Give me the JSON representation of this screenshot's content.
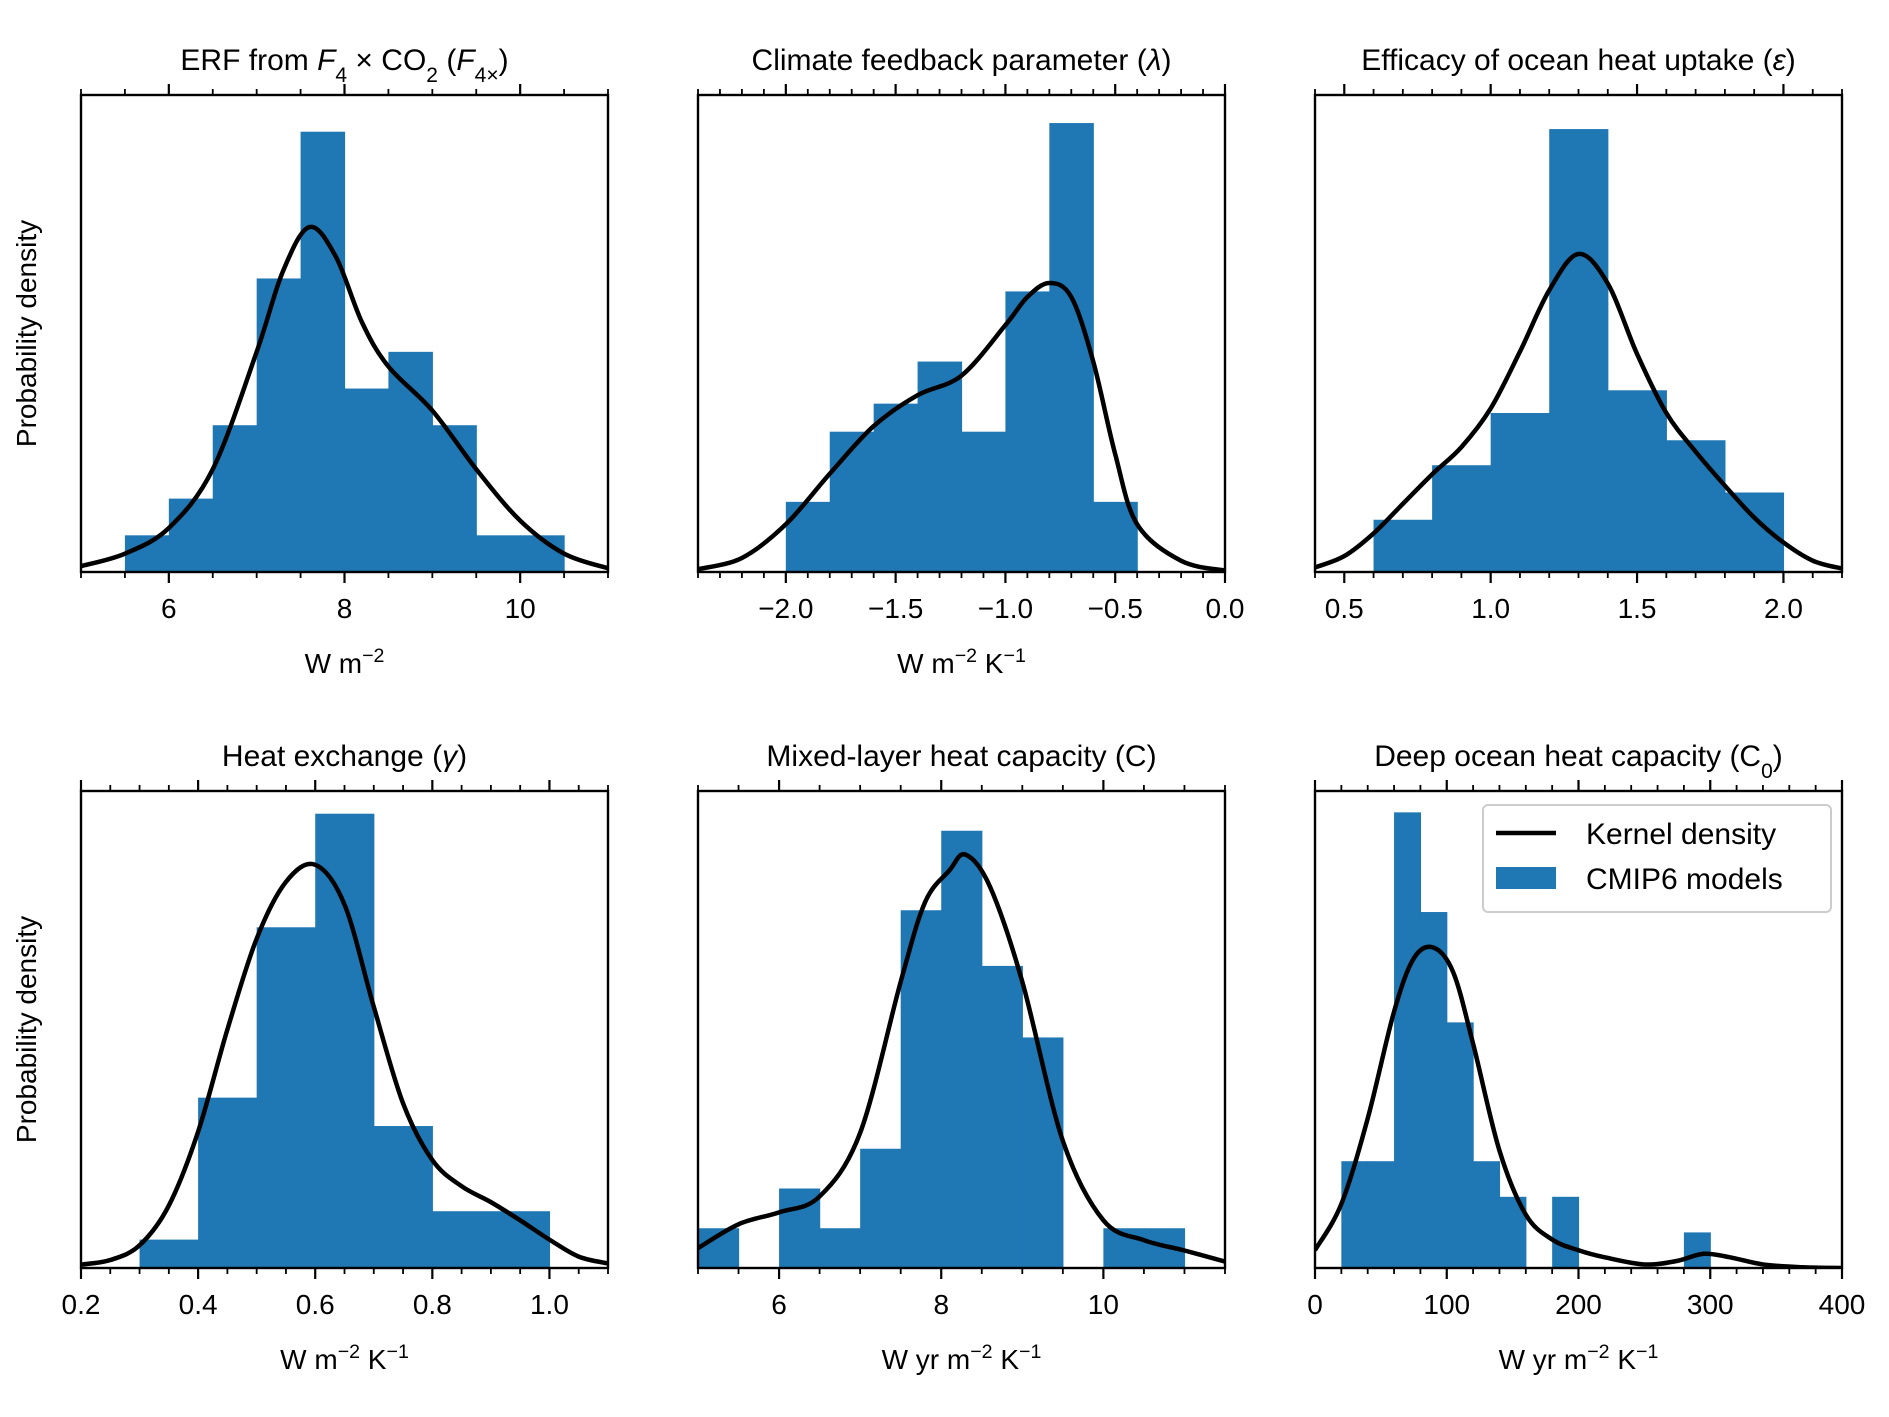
{
  "chart_data": [
    {
      "type": "bar",
      "panel": "a",
      "title": "ERF from F₄ × CO₂ (F₄ₓ)",
      "title_parts": [
        {
          "t": "ERF from "
        },
        {
          "t": "F",
          "i": true
        },
        {
          "t": "4",
          "sub": true
        },
        {
          "t": " × CO"
        },
        {
          "t": "2",
          "sub": true
        },
        {
          "t": " ("
        },
        {
          "t": "F",
          "i": true
        },
        {
          "t": "4×",
          "sub": true
        },
        {
          "t": ")"
        }
      ],
      "xlabel": "W m⁻²",
      "xlabel_parts": [
        {
          "t": "W m"
        },
        {
          "t": "−2",
          "sup": true
        }
      ],
      "ylabel": "Probability density",
      "xlim": [
        5,
        11
      ],
      "ylim": [
        0,
        0.65
      ],
      "xticks": [
        6,
        8,
        10
      ],
      "xtick_labels": [
        "6",
        "8",
        "10"
      ],
      "minor_step": 0.5,
      "bins": [
        5.5,
        6.0,
        6.5,
        7.0,
        7.5,
        8.0,
        8.5,
        9.0,
        9.5,
        10.0,
        10.5
      ],
      "heights": [
        0.05,
        0.1,
        0.2,
        0.4,
        0.6,
        0.25,
        0.3,
        0.2,
        0.05,
        0.05
      ],
      "kde_x": [
        5.0,
        5.5,
        6.0,
        6.5,
        7.0,
        7.3,
        7.6,
        7.9,
        8.2,
        8.5,
        9.0,
        9.5,
        10.0,
        10.5,
        11.0
      ],
      "kde_y": [
        0.008,
        0.025,
        0.06,
        0.14,
        0.3,
        0.41,
        0.47,
        0.43,
        0.34,
        0.28,
        0.22,
        0.14,
        0.07,
        0.025,
        0.005
      ]
    },
    {
      "type": "bar",
      "panel": "b",
      "title": "Climate feedback parameter (λ)",
      "title_parts": [
        {
          "t": "Climate feedback parameter ("
        },
        {
          "t": "λ",
          "i": true
        },
        {
          "t": ")"
        }
      ],
      "xlabel": "W m⁻² K⁻¹",
      "xlabel_parts": [
        {
          "t": "W m"
        },
        {
          "t": "−2",
          "sup": true
        },
        {
          "t": " K"
        },
        {
          "t": "−1",
          "sup": true
        }
      ],
      "xlim": [
        -2.4,
        0.0
      ],
      "ylim": [
        0,
        1.7
      ],
      "xticks": [
        -2.0,
        -1.5,
        -1.0,
        -0.5,
        0.0
      ],
      "xtick_labels": [
        "−2.0",
        "−1.5",
        "−1.0",
        "−0.5",
        "0.0"
      ],
      "minor_step": 0.1,
      "bins": [
        -2.0,
        -1.8,
        -1.6,
        -1.4,
        -1.2,
        -1.0,
        -0.8,
        -0.6,
        -0.4
      ],
      "heights": [
        0.25,
        0.5,
        0.6,
        0.75,
        0.5,
        1.0,
        1.6,
        0.25
      ],
      "kde_x": [
        -2.4,
        -2.2,
        -2.0,
        -1.8,
        -1.6,
        -1.4,
        -1.2,
        -1.0,
        -0.9,
        -0.8,
        -0.7,
        -0.6,
        -0.5,
        -0.4,
        -0.2,
        0.0
      ],
      "kde_y": [
        0.01,
        0.05,
        0.17,
        0.35,
        0.52,
        0.63,
        0.7,
        0.88,
        0.98,
        1.03,
        0.98,
        0.75,
        0.42,
        0.17,
        0.04,
        0.005
      ]
    },
    {
      "type": "bar",
      "panel": "c",
      "title": "Efficacy of ocean heat uptake (ε)",
      "title_parts": [
        {
          "t": "Efficacy of ocean heat uptake ("
        },
        {
          "t": "ε",
          "i": true
        },
        {
          "t": ")"
        }
      ],
      "xlabel": "",
      "xlim": [
        0.4,
        2.2
      ],
      "ylim": [
        0,
        2.1
      ],
      "xticks": [
        0.5,
        1.0,
        1.5,
        2.0
      ],
      "xtick_labels": [
        "0.5",
        "1.0",
        "1.5",
        "2.0"
      ],
      "minor_step": 0.1,
      "bins": [
        0.6,
        0.8,
        1.0,
        1.2,
        1.4,
        1.6,
        1.8,
        2.0
      ],
      "heights": [
        0.23,
        0.47,
        0.7,
        1.95,
        0.8,
        0.58,
        0.35
      ],
      "kde_x": [
        0.4,
        0.5,
        0.6,
        0.7,
        0.8,
        0.9,
        1.0,
        1.1,
        1.2,
        1.3,
        1.4,
        1.5,
        1.6,
        1.7,
        1.8,
        1.9,
        2.0,
        2.1,
        2.2
      ],
      "kde_y": [
        0.02,
        0.07,
        0.17,
        0.3,
        0.43,
        0.55,
        0.72,
        0.97,
        1.24,
        1.4,
        1.27,
        0.96,
        0.7,
        0.53,
        0.38,
        0.24,
        0.13,
        0.05,
        0.015
      ]
    },
    {
      "type": "bar",
      "panel": "d",
      "title": "Heat exchange (γ)",
      "title_parts": [
        {
          "t": "Heat exchange ("
        },
        {
          "t": "γ",
          "i": true
        },
        {
          "t": ")"
        }
      ],
      "xlabel": "W m⁻² K⁻¹",
      "xlabel_parts": [
        {
          "t": "W m"
        },
        {
          "t": "−2",
          "sup": true
        },
        {
          "t": " K"
        },
        {
          "t": "−1",
          "sup": true
        }
      ],
      "ylabel": "Probability density",
      "xlim": [
        0.2,
        1.1
      ],
      "ylim": [
        0,
        4.2
      ],
      "xticks": [
        0.2,
        0.4,
        0.6,
        0.8,
        1.0
      ],
      "xtick_labels": [
        "0.2",
        "0.4",
        "0.6",
        "0.8",
        "1.0"
      ],
      "minor_step": 0.05,
      "bins": [
        0.3,
        0.4,
        0.5,
        0.6,
        0.7,
        0.8,
        0.9,
        1.0
      ],
      "heights": [
        0.25,
        1.5,
        3.0,
        4.0,
        1.25,
        0.5,
        0.5
      ],
      "kde_x": [
        0.2,
        0.25,
        0.3,
        0.35,
        0.4,
        0.45,
        0.5,
        0.55,
        0.6,
        0.65,
        0.7,
        0.75,
        0.8,
        0.85,
        0.9,
        0.95,
        1.0,
        1.05,
        1.1
      ],
      "kde_y": [
        0.03,
        0.07,
        0.2,
        0.55,
        1.2,
        2.1,
        2.9,
        3.4,
        3.55,
        3.2,
        2.3,
        1.45,
        0.95,
        0.72,
        0.58,
        0.42,
        0.25,
        0.1,
        0.04
      ]
    },
    {
      "type": "bar",
      "panel": "e",
      "title": "Mixed-layer heat capacity (C)",
      "title_parts": [
        {
          "t": "Mixed-layer heat capacity (C)"
        }
      ],
      "xlabel": "W yr m⁻² K⁻¹",
      "xlabel_parts": [
        {
          "t": "W yr m"
        },
        {
          "t": "−2",
          "sup": true
        },
        {
          "t": " K"
        },
        {
          "t": "−1",
          "sup": true
        }
      ],
      "xlim": [
        5,
        11.5
      ],
      "ylim": [
        0,
        0.6
      ],
      "xticks": [
        6,
        8,
        10
      ],
      "xtick_labels": [
        "6",
        "8",
        "10"
      ],
      "minor_step": 0.5,
      "bins": [
        5.0,
        5.5,
        6.0,
        6.5,
        7.0,
        7.5,
        8.0,
        8.5,
        9.0,
        9.5,
        10.0,
        10.5,
        11.0
      ],
      "heights": [
        0.05,
        0.0,
        0.1,
        0.05,
        0.15,
        0.45,
        0.55,
        0.38,
        0.29,
        0.0,
        0.05,
        0.05
      ],
      "kde_x": [
        5.0,
        5.5,
        6.0,
        6.5,
        7.0,
        7.5,
        7.8,
        8.1,
        8.3,
        8.6,
        9.0,
        9.5,
        10.0,
        10.5,
        11.0,
        11.5
      ],
      "kde_y": [
        0.025,
        0.055,
        0.07,
        0.09,
        0.17,
        0.36,
        0.46,
        0.5,
        0.52,
        0.48,
        0.36,
        0.16,
        0.06,
        0.035,
        0.022,
        0.008
      ]
    },
    {
      "type": "bar",
      "panel": "f",
      "title": "Deep ocean heat capacity (C₀)",
      "title_parts": [
        {
          "t": "Deep ocean heat capacity (C"
        },
        {
          "t": "0",
          "sub": true
        },
        {
          "t": ")"
        }
      ],
      "xlabel": "W yr m⁻² K⁻¹",
      "xlabel_parts": [
        {
          "t": "W yr m"
        },
        {
          "t": "−2",
          "sup": true
        },
        {
          "t": " K"
        },
        {
          "t": "−1",
          "sup": true
        }
      ],
      "xlim": [
        0,
        400
      ],
      "ylim": [
        0,
        0.0134
      ],
      "xticks": [
        0,
        100,
        200,
        300,
        400
      ],
      "xtick_labels": [
        "0",
        "100",
        "200",
        "300",
        "400"
      ],
      "minor_step": 20,
      "bins": [
        20,
        40,
        60,
        80,
        100,
        120,
        140,
        160,
        180,
        200,
        220,
        240,
        260,
        280,
        300
      ],
      "heights": [
        0.003,
        0.003,
        0.0128,
        0.01,
        0.0069,
        0.003,
        0.002,
        0.0,
        0.002,
        0.0,
        0.0,
        0.0,
        0.0,
        0.001
      ],
      "kde_x": [
        0,
        20,
        40,
        60,
        75,
        90,
        105,
        120,
        140,
        160,
        180,
        200,
        220,
        250,
        275,
        295,
        315,
        340,
        370,
        400
      ],
      "kde_y": [
        0.0005,
        0.0018,
        0.0042,
        0.0072,
        0.0087,
        0.009,
        0.0083,
        0.0063,
        0.0033,
        0.0015,
        0.0008,
        0.0005,
        0.0003,
        0.0001,
        0.0002,
        0.0004,
        0.0003,
        0.0001,
        2e-05,
        0.0
      ]
    }
  ],
  "legend": {
    "kde_label": "Kernel density",
    "bars_label": "CMIP6 models",
    "placement": "top-right of panel f"
  },
  "colors": {
    "bar": "#1f77b4",
    "kde": "#000000",
    "axes": "#000000"
  }
}
